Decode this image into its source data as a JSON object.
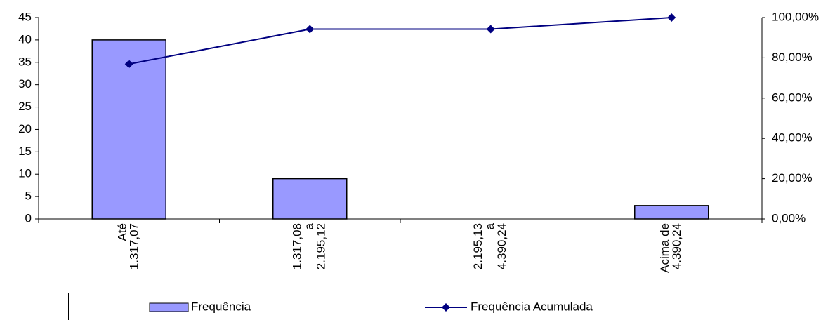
{
  "chart_data": {
    "type": "bar",
    "categories": [
      [
        "Até",
        "1.317,07"
      ],
      [
        "1.317,08",
        "a",
        "2.195,12"
      ],
      [
        "2.195,13",
        "a",
        "4.390,24"
      ],
      [
        "Acima de",
        "4.390,24"
      ]
    ],
    "series": [
      {
        "name": "Frequência",
        "color": "#9999ff",
        "values": [
          40,
          9,
          0,
          3
        ]
      },
      {
        "name": "Frequência Acumulada",
        "color": "#000080",
        "axis": "y2",
        "type": "line",
        "values": [
          76.92,
          94.23,
          94.23,
          100
        ]
      }
    ],
    "ylim": [
      0,
      45
    ],
    "yticks": [
      0,
      5,
      10,
      15,
      20,
      25,
      30,
      35,
      40,
      45
    ],
    "y2lim": [
      0,
      100
    ],
    "y2ticks": [
      {
        "value": 0,
        "label": "0,00%"
      },
      {
        "value": 20,
        "label": "20,00%"
      },
      {
        "value": 40,
        "label": "40,00%"
      },
      {
        "value": 60,
        "label": "60,00%"
      },
      {
        "value": 80,
        "label": "80,00%"
      },
      {
        "value": 100,
        "label": "100,00%"
      }
    ],
    "grid": false,
    "legend": "bottom"
  }
}
